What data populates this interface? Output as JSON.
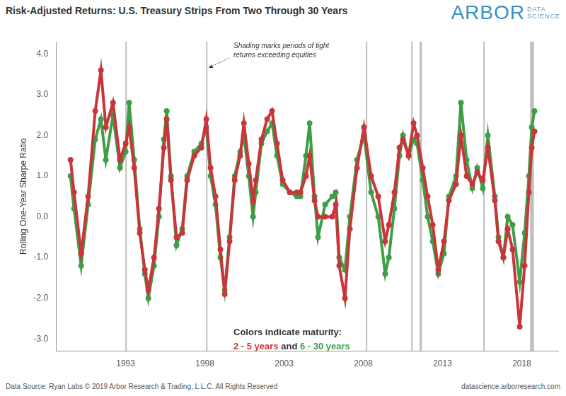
{
  "chart_data": {
    "type": "scatter",
    "title": "Risk-Adjusted Returns: U.S. Treasury Strips From Two Through 30 Years",
    "y_label": "Rolling One-Year Sharpe Ratio",
    "x": [
      1989.52,
      1989.74,
      1990.19,
      1990.63,
      1991.08,
      1991.44,
      1991.75,
      1992.2,
      1992.64,
      1993.0,
      1993.22,
      1993.54,
      1993.89,
      1994.21,
      1994.43,
      1994.79,
      1995.1,
      1995.41,
      1995.59,
      1995.86,
      1996.21,
      1996.57,
      1996.88,
      1997.33,
      1997.78,
      1998.09,
      1998.36,
      1998.67,
      1998.98,
      1999.25,
      1999.56,
      1999.88,
      2000.23,
      2000.46,
      2000.77,
      2001.04,
      2001.21,
      2001.57,
      2001.93,
      2002.24,
      2002.55,
      2002.91,
      2003.36,
      2003.8,
      2004.03,
      2004.38,
      2004.61,
      2004.92,
      2005.14,
      2005.59,
      2006.04,
      2006.26,
      2006.48,
      2006.84,
      2007.15,
      2007.6,
      2008.04,
      2008.49,
      2008.94,
      2009.38,
      2009.61,
      2009.96,
      2010.28,
      2010.5,
      2010.86,
      2011.17,
      2011.39,
      2011.75,
      2012.06,
      2012.38,
      2012.73,
      2013.09,
      2013.4,
      2013.85,
      2014.16,
      2014.52,
      2014.88,
      2015.19,
      2015.54,
      2015.86,
      2016.3,
      2016.53,
      2016.84,
      2017.11,
      2017.42,
      2017.87,
      2018.18,
      2018.45,
      2018.63,
      2018.8
    ],
    "series": [
      {
        "name": "2 - 5 years",
        "color": "#c8353a",
        "marker": "circle",
        "line_style": "solid",
        "values": [
          1.4,
          0.6,
          -0.9,
          0.5,
          2.6,
          3.6,
          2.2,
          2.8,
          1.4,
          1.8,
          2.2,
          1.2,
          -0.4,
          -1.3,
          -1.8,
          -1.0,
          0.2,
          1.7,
          2.4,
          0.9,
          -0.5,
          -0.4,
          0.9,
          1.5,
          1.7,
          2.4,
          1.2,
          0.5,
          -0.8,
          -1.9,
          -0.6,
          0.9,
          1.5,
          2.3,
          1.3,
          0.4,
          0.9,
          1.9,
          2.4,
          2.6,
          1.8,
          0.9,
          0.6,
          0.6,
          0.6,
          1.0,
          1.5,
          0.4,
          0.0,
          0.0,
          0.0,
          0.3,
          -1.2,
          -2.0,
          -0.3,
          1.2,
          2.2,
          1.0,
          0.5,
          -0.6,
          -0.2,
          0.6,
          1.7,
          1.9,
          1.5,
          2.3,
          2.0,
          1.2,
          0.5,
          -0.2,
          -1.3,
          -0.6,
          0.4,
          0.8,
          2.0,
          1.0,
          0.8,
          1.1,
          0.9,
          1.7,
          0.4,
          -0.6,
          -1.0,
          -0.3,
          -0.8,
          -2.7,
          -1.2,
          0.6,
          1.7,
          2.1
        ]
      },
      {
        "name": "6 - 30 years",
        "color": "#3e9e45",
        "marker": "circle",
        "line_style": "solid",
        "values": [
          1.0,
          0.2,
          -1.2,
          0.3,
          1.9,
          2.4,
          1.4,
          2.5,
          1.2,
          1.6,
          2.8,
          1.4,
          -0.3,
          -1.4,
          -2.0,
          -1.2,
          0.0,
          1.9,
          2.6,
          1.0,
          -0.7,
          -0.3,
          1.0,
          1.6,
          1.8,
          2.2,
          1.0,
          0.3,
          -1.0,
          -1.8,
          -0.5,
          1.0,
          1.6,
          2.0,
          1.0,
          0.0,
          0.6,
          1.8,
          2.1,
          2.3,
          1.5,
          0.8,
          0.6,
          0.5,
          0.5,
          1.5,
          2.3,
          0.5,
          -0.5,
          0.3,
          0.5,
          0.6,
          -1.0,
          -1.3,
          0.0,
          1.4,
          2.0,
          0.6,
          0.0,
          -1.4,
          -1.0,
          0.2,
          1.5,
          2.0,
          1.5,
          1.9,
          1.8,
          0.9,
          0.0,
          -0.6,
          -1.4,
          -0.9,
          0.5,
          1.0,
          2.8,
          1.4,
          0.7,
          1.2,
          0.7,
          2.0,
          0.5,
          -0.5,
          -1.0,
          0.0,
          -0.2,
          -1.6,
          -0.4,
          1.0,
          2.2,
          2.6
        ]
      }
    ],
    "xlim": [
      1988.6,
      2020.3
    ],
    "xticks": [
      1993,
      1998,
      2003,
      2008,
      2013,
      2018
    ],
    "ylim": [
      -3.3,
      4.3
    ],
    "yticks": [
      {
        "value": -3,
        "label": "-3.0"
      },
      {
        "value": -2,
        "label": "-2.0"
      },
      {
        "value": -1,
        "label": "-1.0"
      },
      {
        "value": 0,
        "label": "0.0"
      },
      {
        "value": 1,
        "label": "1.0"
      },
      {
        "value": 2,
        "label": "2.0"
      },
      {
        "value": 3,
        "label": "3.0"
      },
      {
        "value": 4,
        "label": "4.0"
      }
    ],
    "grid": false,
    "shaded_periods": [
      [
        1992.98,
        1993.04
      ],
      [
        1998.07,
        1998.13
      ],
      [
        2008.16,
        2008.22
      ],
      [
        2011.02,
        2011.08
      ],
      [
        2011.55,
        2011.7
      ],
      [
        2015.57,
        2015.63
      ],
      [
        2018.52,
        2018.77
      ]
    ],
    "annotation": [
      "Shading marks periods of tight",
      "returns exceeding equities"
    ],
    "color_note": "Colors indicate maturity:",
    "color_note_joiner": "and",
    "source": "Data Source: Ryan Labs © 2019 Arbor Research & Trading, L.L.C. All Rights Reserved",
    "website": "datascience.arborresearch.com",
    "logo": {
      "text": "ARBOR",
      "subtext": [
        "DATA",
        "SCIENCE"
      ]
    }
  }
}
